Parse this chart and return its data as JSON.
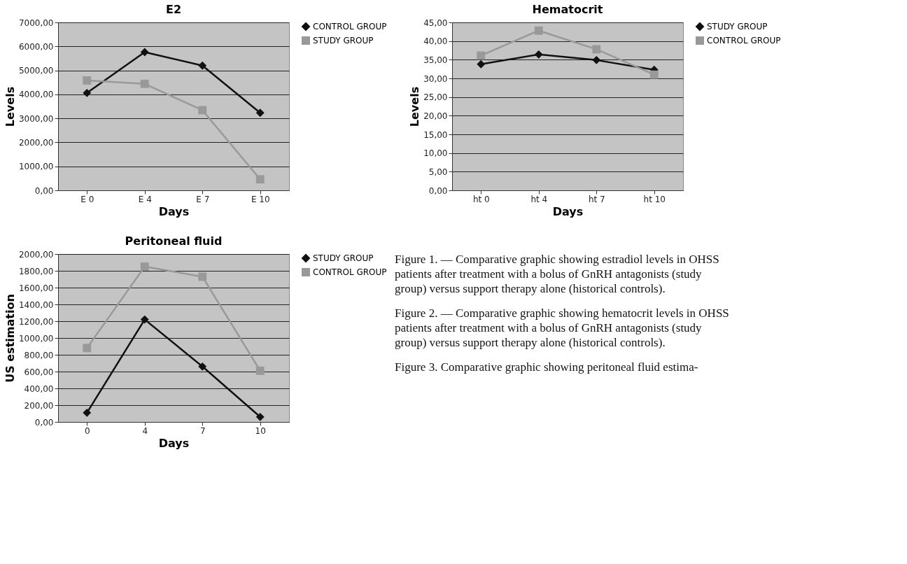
{
  "chart_data": [
    {
      "type": "line",
      "title": "E2",
      "xlabel": "Days",
      "ylabel": "Levels",
      "categories": [
        "E 0",
        "E 4",
        "E 7",
        "E 10"
      ],
      "ylim": [
        0,
        7000
      ],
      "yticks": [
        {
          "value": 0,
          "label": "0,00"
        },
        {
          "value": 1000,
          "label": "1000,00"
        },
        {
          "value": 2000,
          "label": "2000,00"
        },
        {
          "value": 3000,
          "label": "3000,00"
        },
        {
          "value": 4000,
          "label": "4000,00"
        },
        {
          "value": 5000,
          "label": "5000,00"
        },
        {
          "value": 6000,
          "label": "6000,00"
        },
        {
          "value": 7000,
          "label": "7000,00"
        }
      ],
      "grid": "y",
      "legend": "right",
      "line_style": "solid",
      "series": [
        {
          "name": "CONTROL GROUP",
          "color": "#111111",
          "marker": "diamond",
          "values": [
            4060,
            5760,
            5200,
            3230
          ]
        },
        {
          "name": "STUDY GROUP",
          "color": "#999999",
          "marker": "square",
          "values": [
            4580,
            4440,
            3340,
            460
          ]
        }
      ]
    },
    {
      "type": "line",
      "title": "Hematocrit",
      "xlabel": "Days",
      "ylabel": "Levels",
      "categories": [
        "ht 0",
        "ht 4",
        "ht 7",
        "ht 10"
      ],
      "ylim": [
        0,
        45
      ],
      "yticks": [
        {
          "value": 0,
          "label": "0,00"
        },
        {
          "value": 5,
          "label": "5,00"
        },
        {
          "value": 10,
          "label": "10,00"
        },
        {
          "value": 15,
          "label": "15,00"
        },
        {
          "value": 20,
          "label": "20,00"
        },
        {
          "value": 25,
          "label": "25,00"
        },
        {
          "value": 30,
          "label": "30,00"
        },
        {
          "value": 35,
          "label": "35,00"
        },
        {
          "value": 40,
          "label": "40,00"
        },
        {
          "value": 45,
          "label": "45,00"
        }
      ],
      "grid": "y",
      "legend": "right",
      "line_style": "solid",
      "series": [
        {
          "name": "STUDY GROUP",
          "color": "#111111",
          "marker": "diamond",
          "values": [
            33.8,
            36.4,
            34.9,
            32.3
          ]
        },
        {
          "name": "CONTROL GROUP",
          "color": "#999999",
          "marker": "square",
          "values": [
            36.1,
            42.8,
            37.8,
            31.0
          ]
        }
      ]
    },
    {
      "type": "line",
      "title": "Peritoneal fluid",
      "xlabel": "Days",
      "ylabel": "US estimation",
      "categories": [
        "0",
        "4",
        "7",
        "10"
      ],
      "ylim": [
        0,
        2000
      ],
      "yticks": [
        {
          "value": 0,
          "label": "0,00"
        },
        {
          "value": 200,
          "label": "200,00"
        },
        {
          "value": 400,
          "label": "400,00"
        },
        {
          "value": 600,
          "label": "600,00"
        },
        {
          "value": 800,
          "label": "800,00"
        },
        {
          "value": 1000,
          "label": "1000,00"
        },
        {
          "value": 1200,
          "label": "1200,00"
        },
        {
          "value": 1400,
          "label": "1400,00"
        },
        {
          "value": 1600,
          "label": "1600,00"
        },
        {
          "value": 1800,
          "label": "1800,00"
        },
        {
          "value": 2000,
          "label": "2000,00"
        }
      ],
      "grid": "y",
      "legend": "right",
      "line_style": "solid",
      "series": [
        {
          "name": "STUDY GROUP",
          "color": "#111111",
          "marker": "diamond",
          "values": [
            110,
            1220,
            660,
            60
          ]
        },
        {
          "name": "CONTROL GROUP",
          "color": "#999999",
          "marker": "square",
          "values": [
            880,
            1850,
            1730,
            610
          ]
        }
      ],
      "annotations": [
        "Figure 1. — Comparative graphic showing estradiol levels in OHSS patients after treatment with a bolus of GnRH antagonists (study group) versus support therapy alone (historical controls).",
        "Figure 2. — Comparative graphic showing hematocrit levels in OHSS patients after treatment with a bolus of GnRH antagonists (study group) versus support therapy alone (historical controls).",
        "Figure 3. Comparative graphic showing peritoneal fluid estima-"
      ]
    }
  ]
}
